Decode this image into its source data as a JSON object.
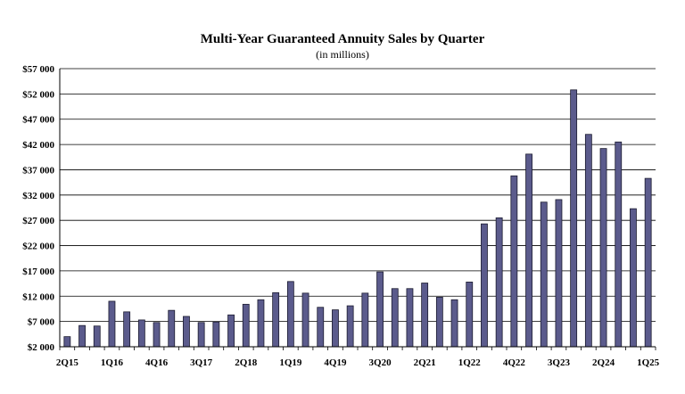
{
  "chart_data": {
    "type": "bar",
    "title": "Multi-Year Guaranteed Annuity Sales by Quarter",
    "subtitle": "(in millions)",
    "xlabel": "",
    "ylabel": "",
    "ylim": [
      2000,
      57000
    ],
    "y_ticks": [
      2000,
      7000,
      12000,
      17000,
      22000,
      27000,
      32000,
      37000,
      42000,
      47000,
      52000,
      57000
    ],
    "y_tick_labels": [
      "$2 000",
      "$7 000",
      "$12 000",
      "$17 000",
      "$22 000",
      "$27 000",
      "$32 000",
      "$37 000",
      "$42 000",
      "$47 000",
      "$52 000",
      "$57 000"
    ],
    "grid": true,
    "legend": "none",
    "bar_color": "#5b5b8c",
    "categories": [
      "2Q15",
      "3Q15",
      "4Q15",
      "1Q16",
      "2Q16",
      "3Q16",
      "4Q16",
      "1Q17",
      "2Q17",
      "3Q17",
      "4Q17",
      "1Q18",
      "2Q18",
      "3Q18",
      "4Q18",
      "1Q19",
      "2Q19",
      "3Q19",
      "4Q19",
      "1Q20",
      "2Q20",
      "3Q20",
      "4Q20",
      "1Q21",
      "2Q21",
      "3Q21",
      "4Q21",
      "1Q22",
      "2Q22",
      "3Q22",
      "4Q22",
      "1Q23",
      "2Q23",
      "3Q23",
      "4Q23",
      "1Q24",
      "2Q24",
      "3Q24",
      "4Q24",
      "1Q25"
    ],
    "visible_x_labels": [
      "2Q15",
      "1Q16",
      "4Q16",
      "3Q17",
      "2Q18",
      "1Q19",
      "4Q19",
      "3Q20",
      "2Q21",
      "1Q22",
      "4Q22",
      "3Q23",
      "2Q24",
      "1Q25"
    ],
    "values": [
      4000,
      6200,
      6100,
      11000,
      8900,
      7300,
      6800,
      9200,
      8000,
      6800,
      6900,
      8300,
      10400,
      11300,
      12700,
      14900,
      12600,
      9800,
      9300,
      10100,
      12600,
      16800,
      13500,
      13500,
      14600,
      11800,
      11300,
      14800,
      26300,
      27500,
      35800,
      40100,
      30600,
      31100,
      52800,
      44000,
      41200,
      42500,
      29300,
      35300
    ]
  }
}
